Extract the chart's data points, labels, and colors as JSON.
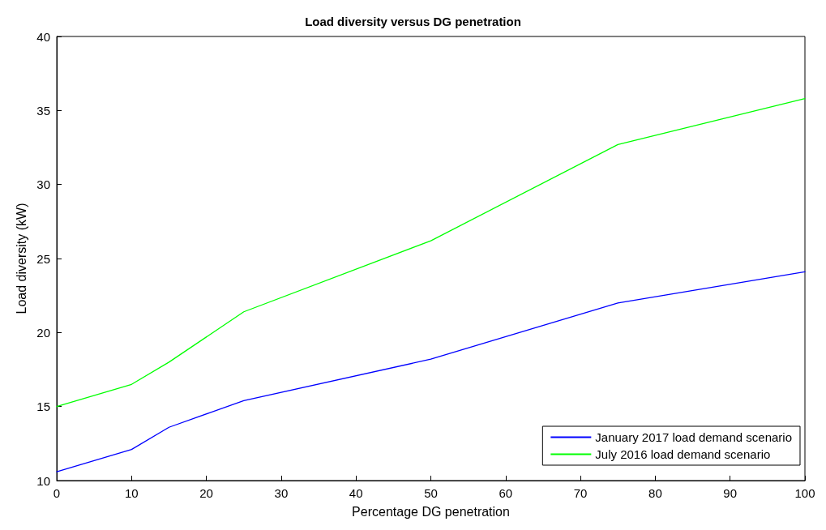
{
  "chart_data": {
    "type": "line",
    "title": "Load diversity versus DG penetration",
    "xlabel": "Percentage DG penetration",
    "ylabel": "Load diversity (kW)",
    "x": [
      0,
      10,
      15,
      25,
      50,
      75,
      100
    ],
    "series": [
      {
        "name": "January 2017 load demand scenario",
        "color": "#0000ff",
        "values": [
          10.6,
          12.1,
          13.6,
          15.4,
          18.2,
          22.0,
          24.1
        ]
      },
      {
        "name": "July 2016 load demand scenario",
        "color": "#00ff00",
        "values": [
          15.0,
          16.5,
          18.0,
          21.4,
          26.2,
          32.7,
          35.8
        ]
      }
    ],
    "xlim": [
      0,
      100
    ],
    "xticks": [
      0,
      10,
      20,
      30,
      40,
      50,
      60,
      70,
      80,
      90,
      100
    ],
    "ylim": [
      10,
      40
    ],
    "yticks": [
      10,
      15,
      20,
      25,
      30,
      35,
      40
    ],
    "grid": false,
    "legend": "bottom right",
    "marker": "none",
    "line_style": "solid"
  }
}
